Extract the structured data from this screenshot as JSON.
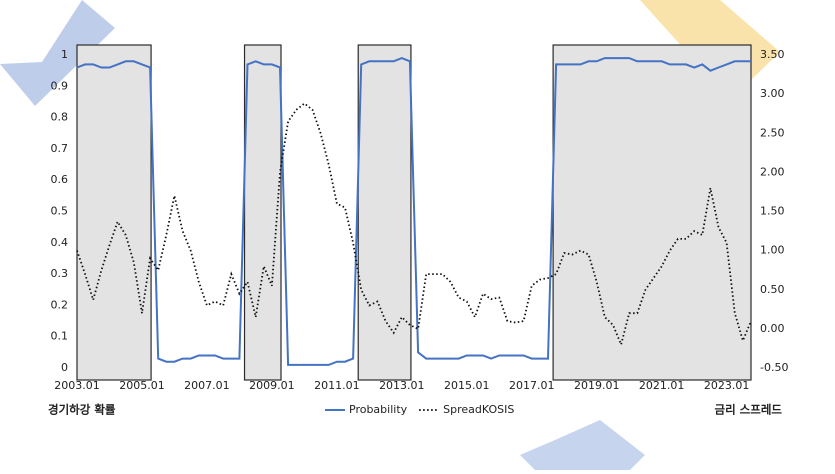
{
  "chart_data": {
    "type": "line",
    "categories": [
      "2003.01",
      null,
      null,
      null,
      null,
      null,
      null,
      null,
      "2005.01",
      null,
      null,
      null,
      null,
      null,
      null,
      null,
      "2007.01",
      null,
      null,
      null,
      null,
      null,
      null,
      null,
      "2009.01",
      null,
      null,
      null,
      null,
      null,
      null,
      null,
      "2011.01",
      null,
      null,
      null,
      null,
      null,
      null,
      null,
      "2013.01",
      null,
      null,
      null,
      null,
      null,
      null,
      null,
      "2015.01",
      null,
      null,
      null,
      null,
      null,
      null,
      null,
      "2017.01",
      null,
      null,
      null,
      null,
      null,
      null,
      null,
      "2019.01",
      null,
      null,
      null,
      null,
      null,
      null,
      null,
      "2021.01",
      null,
      null,
      null,
      null,
      null,
      null,
      null,
      "2023.01",
      null,
      null,
      null
    ],
    "series": [
      {
        "name": "Probability",
        "color": "#4472c4",
        "values": [
          0.96,
          0.97,
          0.97,
          0.96,
          0.96,
          0.97,
          0.98,
          0.98,
          0.97,
          0.96,
          0.03,
          0.02,
          0.02,
          0.03,
          0.03,
          0.04,
          0.04,
          0.04,
          0.03,
          0.03,
          0.03,
          0.97,
          0.98,
          0.97,
          0.97,
          0.96,
          0.01,
          0.01,
          0.01,
          0.01,
          0.01,
          0.01,
          0.02,
          0.02,
          0.03,
          0.97,
          0.98,
          0.98,
          0.98,
          0.98,
          0.99,
          0.98,
          0.05,
          0.03,
          0.03,
          0.03,
          0.03,
          0.03,
          0.04,
          0.04,
          0.04,
          0.03,
          0.04,
          0.04,
          0.04,
          0.04,
          0.03,
          0.03,
          0.03,
          0.97,
          0.97,
          0.97,
          0.97,
          0.98,
          0.98,
          0.99,
          0.99,
          0.99,
          0.99,
          0.98,
          0.98,
          0.98,
          0.98,
          0.97,
          0.97,
          0.97,
          0.96,
          0.97,
          0.95,
          0.96,
          0.97,
          0.98,
          0.98,
          0.98
        ]
      },
      {
        "name": "SpreadKOSIS",
        "color": "#111111",
        "axis": "y2",
        "values": [
          1.0,
          0.7,
          0.37,
          0.75,
          1.07,
          1.37,
          1.2,
          0.85,
          0.2,
          0.9,
          0.75,
          1.2,
          1.7,
          1.25,
          1.0,
          0.6,
          0.3,
          0.35,
          0.3,
          0.7,
          0.45,
          0.6,
          0.15,
          0.8,
          0.55,
          2.0,
          2.65,
          2.8,
          2.88,
          2.8,
          2.5,
          2.1,
          1.6,
          1.55,
          1.1,
          0.5,
          0.3,
          0.35,
          0.1,
          -0.05,
          0.15,
          0.05,
          0.0,
          0.7,
          0.7,
          0.7,
          0.6,
          0.4,
          0.35,
          0.15,
          0.45,
          0.38,
          0.4,
          0.1,
          0.08,
          0.1,
          0.55,
          0.63,
          0.65,
          0.7,
          0.97,
          0.95,
          1.0,
          0.95,
          0.6,
          0.15,
          0.05,
          -0.2,
          0.2,
          0.2,
          0.5,
          0.65,
          0.8,
          1.0,
          1.15,
          1.15,
          1.25,
          1.2,
          1.8,
          1.3,
          1.1,
          0.2,
          -0.15,
          0.1
        ]
      }
    ],
    "ylim": [
      0,
      1
    ],
    "yticks": [
      0,
      0.1,
      0.2,
      0.3,
      0.4,
      0.5,
      0.6,
      0.7,
      0.8,
      0.9,
      1
    ],
    "y2lim": [
      -0.5,
      3.5
    ],
    "y2ticks": [
      {
        "value": 3.5,
        "label": "3.50"
      },
      {
        "value": 3,
        "label": "3.00"
      },
      {
        "value": 2.5,
        "label": "2.50"
      },
      {
        "value": 2,
        "label": "2.00"
      },
      {
        "value": 1.5,
        "label": "1.50"
      },
      {
        "value": 1,
        "label": "1.00"
      },
      {
        "value": 0.5,
        "label": "0.50"
      },
      {
        "value": 0,
        "label": "0.00"
      },
      {
        "value": -0.5,
        "label": "-0.50"
      }
    ],
    "ylabel": "경기하강 확률",
    "y2label": "금리 스프레드",
    "legend": "bottom"
  }
}
